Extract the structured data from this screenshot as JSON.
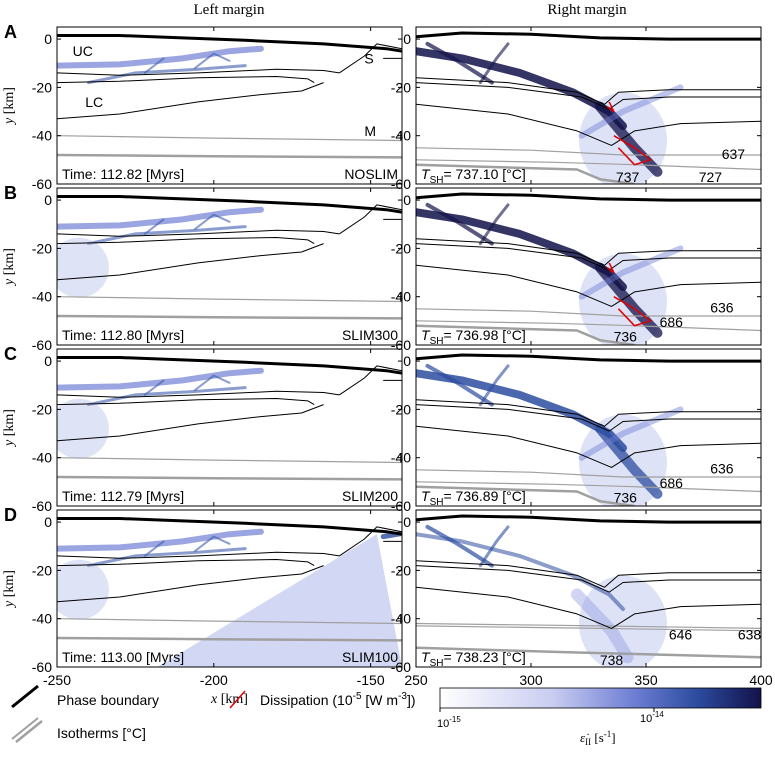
{
  "chart_data": {
    "type": "multi-panel model cross-section",
    "column_titles": {
      "left": "Left margin",
      "right": "Right margin"
    },
    "xlabel": "x [km]",
    "ylabel": "y [km]",
    "axes": {
      "left": {
        "xlim": [
          -250,
          -140
        ],
        "xticks": [
          -250,
          -200,
          -150
        ]
      },
      "right": {
        "xlim": [
          250,
          400
        ],
        "xticks": [
          250,
          300,
          350,
          400
        ]
      },
      "ylim": [
        -60,
        5
      ],
      "yticks": [
        0,
        -20,
        -40,
        -60
      ]
    },
    "region_labels": [
      {
        "text": "UC",
        "x": -245,
        "y": -5
      },
      {
        "text": "LC",
        "x": -241,
        "y": -26
      },
      {
        "text": "S",
        "x": -152,
        "y": -8
      },
      {
        "text": "M",
        "x": -152,
        "y": -38
      }
    ],
    "rows": [
      {
        "letter": "A",
        "time_label": "Time: 112.82 [Myrs]",
        "model": "NOSLIM",
        "tsh_value": "= 737.10 [°C]",
        "isotherm_labels": [
          {
            "text": "637",
            "x": 388,
            "y": -47.5
          },
          {
            "text": "737",
            "x": 342,
            "y": -57
          },
          {
            "text": "727",
            "x": 378,
            "y": -57
          }
        ],
        "dissipation": true
      },
      {
        "letter": "B",
        "time_label": "Time: 112.80 [Myrs]",
        "model": "SLIM300",
        "tsh_value": "= 736.98 [°C]",
        "isotherm_labels": [
          {
            "text": "636",
            "x": 383,
            "y": -44.5
          },
          {
            "text": "686",
            "x": 361,
            "y": -50.5
          },
          {
            "text": "736",
            "x": 341,
            "y": -56.5
          }
        ],
        "dissipation": true
      },
      {
        "letter": "C",
        "time_label": "Time: 112.79 [Myrs]",
        "model": "SLIM200",
        "tsh_value": "= 736.89 [°C]",
        "isotherm_labels": [
          {
            "text": "636",
            "x": 383,
            "y": -44.5
          },
          {
            "text": "686",
            "x": 361,
            "y": -50.5
          },
          {
            "text": "736",
            "x": 341,
            "y": -56.5
          }
        ],
        "dissipation": false
      },
      {
        "letter": "D",
        "time_label": "Time: 113.00 [Myrs]",
        "model": "SLIM100",
        "tsh_value": "= 738.23 [°C]",
        "isotherm_labels": [
          {
            "text": "646",
            "x": 365,
            "y": -46.5
          },
          {
            "text": "638",
            "x": 395,
            "y": -46.5
          },
          {
            "text": "738",
            "x": 335,
            "y": -57
          }
        ],
        "dissipation": false
      }
    ],
    "tsh_symbol": "T",
    "tsh_subscript": "SH",
    "legend": {
      "phase_boundary": "Phase boundary",
      "isotherms": "Isotherms [°C]",
      "dissipation": "Dissipation (10",
      "dissipation_exp": "-5",
      "dissipation_unit": " [W m",
      "dissipation_unit_exp": "-3",
      "dissipation_close": "])",
      "colorbar_min_base": "10",
      "colorbar_min_exp": "-15",
      "colorbar_mid_base": "10",
      "colorbar_mid_exp": "-14",
      "colorbar_label": "ε̇",
      "colorbar_label_sub": "II",
      "colorbar_label_unit": " [s",
      "colorbar_label_unit_exp": "-1",
      "colorbar_label_close": "]"
    },
    "colors": {
      "phase_boundary": "#000000",
      "isotherm": "#a0a0a0",
      "dissipation": "#e00000",
      "strain_low": "#ffffff",
      "strain_mid": "#6f7fd4",
      "strain_high": "#12124a"
    }
  }
}
